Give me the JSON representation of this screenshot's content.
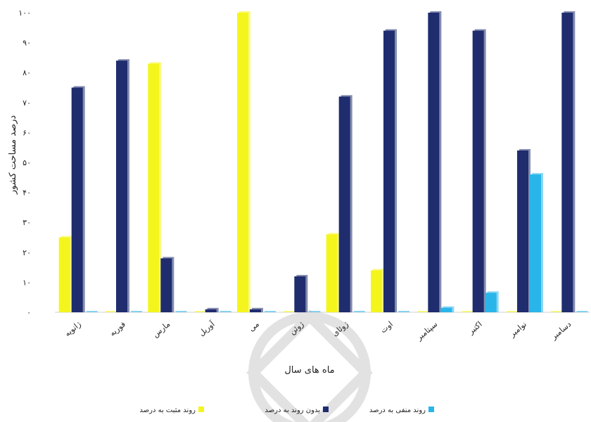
{
  "chart_data": {
    "type": "bar",
    "xlabel": "ماه های سال",
    "ylabel": "درصد مساحت کشور",
    "ylim": [
      0,
      100
    ],
    "yticks": [
      "۰",
      "۱۰",
      "۲۰",
      "۳۰",
      "۴۰",
      "۵۰",
      "۶۰",
      "۷۰",
      "۸۰",
      "۹۰",
      "۱۰۰"
    ],
    "grid": false,
    "legend_position": "bottom",
    "categories": [
      "ژانویه",
      "فوریه",
      "مارس",
      "آوریل",
      "می",
      "ژوئن",
      "ژوئای",
      "اوت",
      "سپتامبر",
      "اکتبر",
      "نوامبر",
      "دسامبر"
    ],
    "series": [
      {
        "name": "روند مثبت به درصد",
        "color": "#f5f51e",
        "values": [
          25,
          0,
          83,
          0,
          100,
          0,
          26,
          14,
          0,
          0,
          0,
          0
        ]
      },
      {
        "name": "بدون روند به درصد",
        "color": "#1f2d6e",
        "values": [
          75,
          84,
          18,
          1,
          1,
          12,
          72,
          94,
          100,
          94,
          54,
          100
        ]
      },
      {
        "name": "روند منفی به درصد",
        "color": "#29b5ea",
        "values": [
          0,
          0,
          0,
          0,
          0,
          0,
          0,
          0,
          1.5,
          6.5,
          46,
          0
        ]
      }
    ]
  }
}
